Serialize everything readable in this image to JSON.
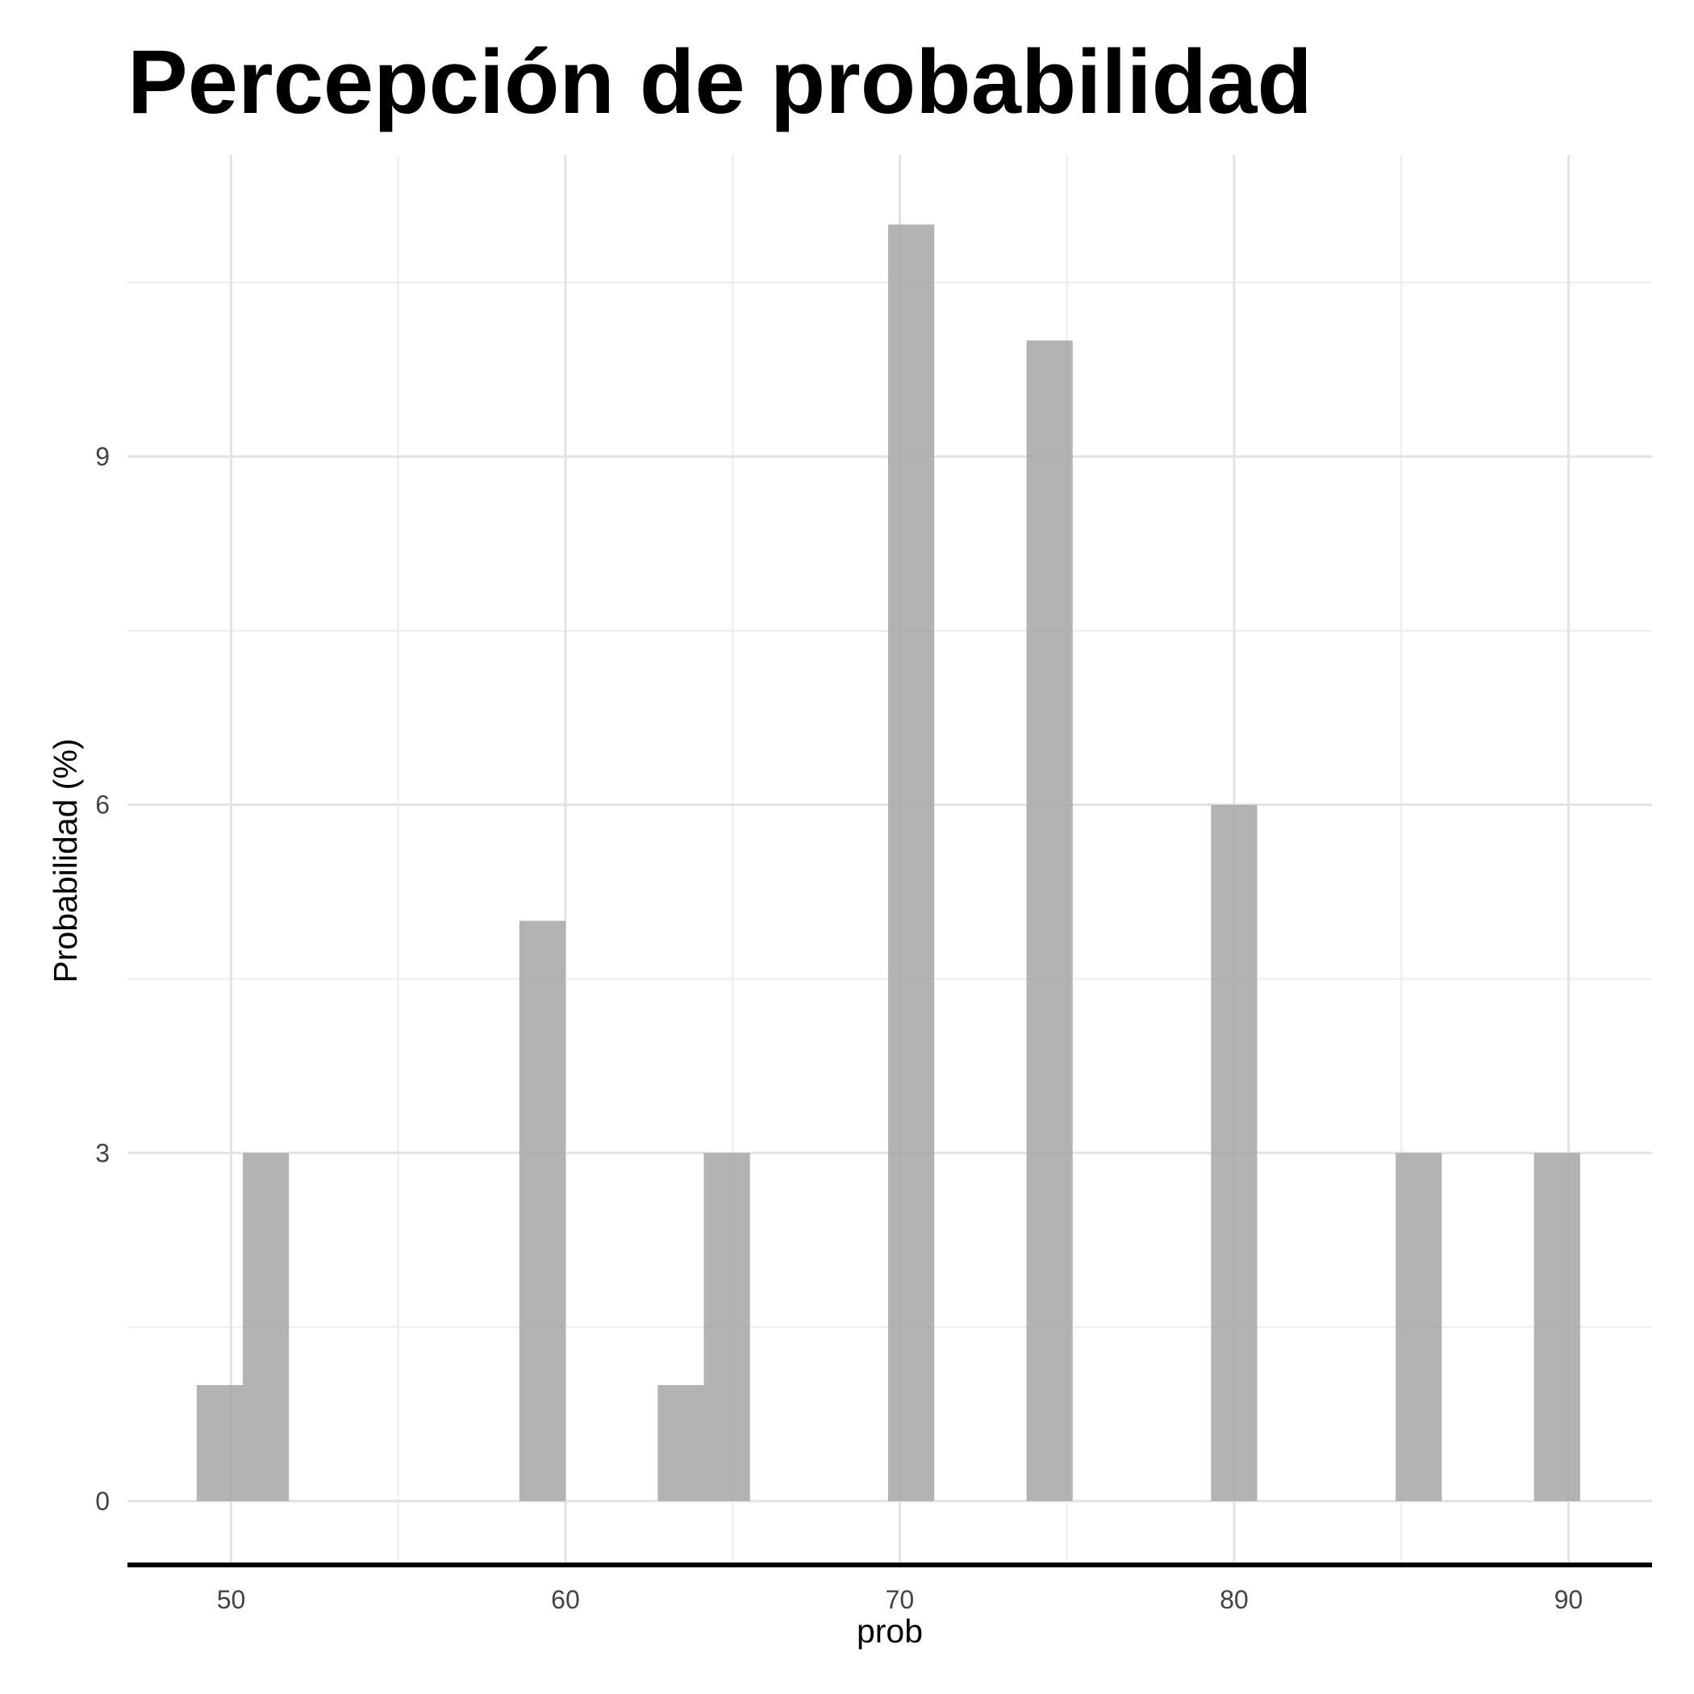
{
  "chart_data": {
    "type": "bar",
    "title": "Percepción de probabilidad",
    "xlabel": "prob",
    "ylabel": "Probabilidad (%)",
    "x_ticks": [
      50,
      60,
      70,
      80,
      90
    ],
    "y_ticks": [
      0,
      3,
      6,
      9
    ],
    "xlim": [
      46.9,
      92.5
    ],
    "ylim": [
      -0.55,
      11.6
    ],
    "bin_width": 1.38,
    "grid": true,
    "bar_color": "#a6a6a6",
    "bars": [
      {
        "x": 49.66,
        "value": 1
      },
      {
        "x": 51.04,
        "value": 3
      },
      {
        "x": 59.31,
        "value": 5
      },
      {
        "x": 63.45,
        "value": 1
      },
      {
        "x": 64.83,
        "value": 3
      },
      {
        "x": 70.34,
        "value": 11
      },
      {
        "x": 74.48,
        "value": 10
      },
      {
        "x": 80.0,
        "value": 6
      },
      {
        "x": 85.52,
        "value": 3
      },
      {
        "x": 89.66,
        "value": 3
      }
    ]
  }
}
